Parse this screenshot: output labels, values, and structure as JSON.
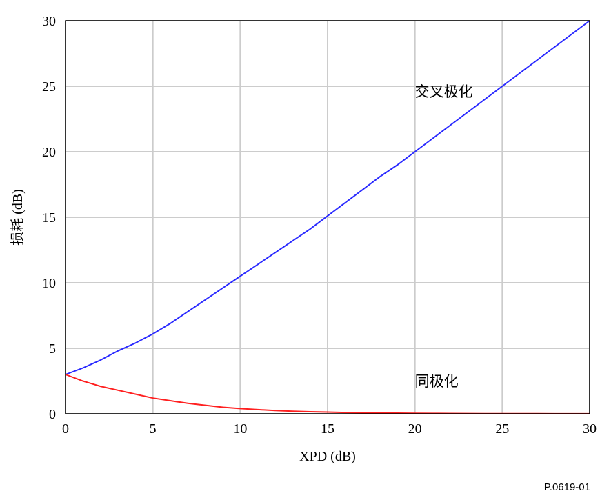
{
  "chart_data": {
    "type": "line",
    "xlabel": "XPD (dB)",
    "ylabel": "损耗 (dB)",
    "xlim": [
      0,
      30
    ],
    "ylim": [
      0,
      30
    ],
    "xticks": [
      0,
      5,
      10,
      15,
      20,
      25,
      30
    ],
    "yticks": [
      0,
      5,
      10,
      15,
      20,
      25,
      30
    ],
    "grid": true,
    "series": [
      {
        "name": "交叉极化",
        "color": "#2a2aff",
        "x": [
          0,
          1,
          2,
          3,
          4,
          5,
          6,
          7,
          8,
          9,
          10,
          11,
          12,
          13,
          14,
          15,
          16,
          17,
          18,
          19,
          20,
          21,
          22,
          23,
          24,
          25,
          26,
          27,
          28,
          29,
          30
        ],
        "y": [
          3.0,
          3.5,
          4.1,
          4.8,
          5.4,
          6.1,
          6.9,
          7.8,
          8.7,
          9.6,
          10.5,
          11.4,
          12.3,
          13.2,
          14.1,
          15.1,
          16.1,
          17.1,
          18.1,
          19.0,
          20.0,
          21.0,
          22.0,
          23.0,
          24.0,
          25.0,
          26.0,
          27.0,
          28.0,
          29.0,
          30.0
        ]
      },
      {
        "name": "同极化",
        "color": "#ff2020",
        "x": [
          0,
          1,
          2,
          3,
          4,
          5,
          6,
          7,
          8,
          9,
          10,
          11,
          12,
          13,
          14,
          15,
          16,
          17,
          18,
          19,
          20,
          21,
          22,
          23,
          24,
          25,
          26,
          27,
          28,
          29,
          30
        ],
        "y": [
          3.0,
          2.5,
          2.1,
          1.8,
          1.5,
          1.2,
          1.0,
          0.8,
          0.65,
          0.5,
          0.4,
          0.32,
          0.25,
          0.2,
          0.16,
          0.13,
          0.1,
          0.08,
          0.06,
          0.05,
          0.04,
          0.03,
          0.025,
          0.02,
          0.016,
          0.013,
          0.01,
          0.008,
          0.006,
          0.005,
          0.004
        ]
      }
    ],
    "annotations": [
      {
        "text": "交叉极化",
        "x": 20,
        "y": 24.2
      },
      {
        "text": "同极化",
        "x": 20,
        "y": 2.1
      }
    ]
  },
  "figure_id": "P.0619-01"
}
